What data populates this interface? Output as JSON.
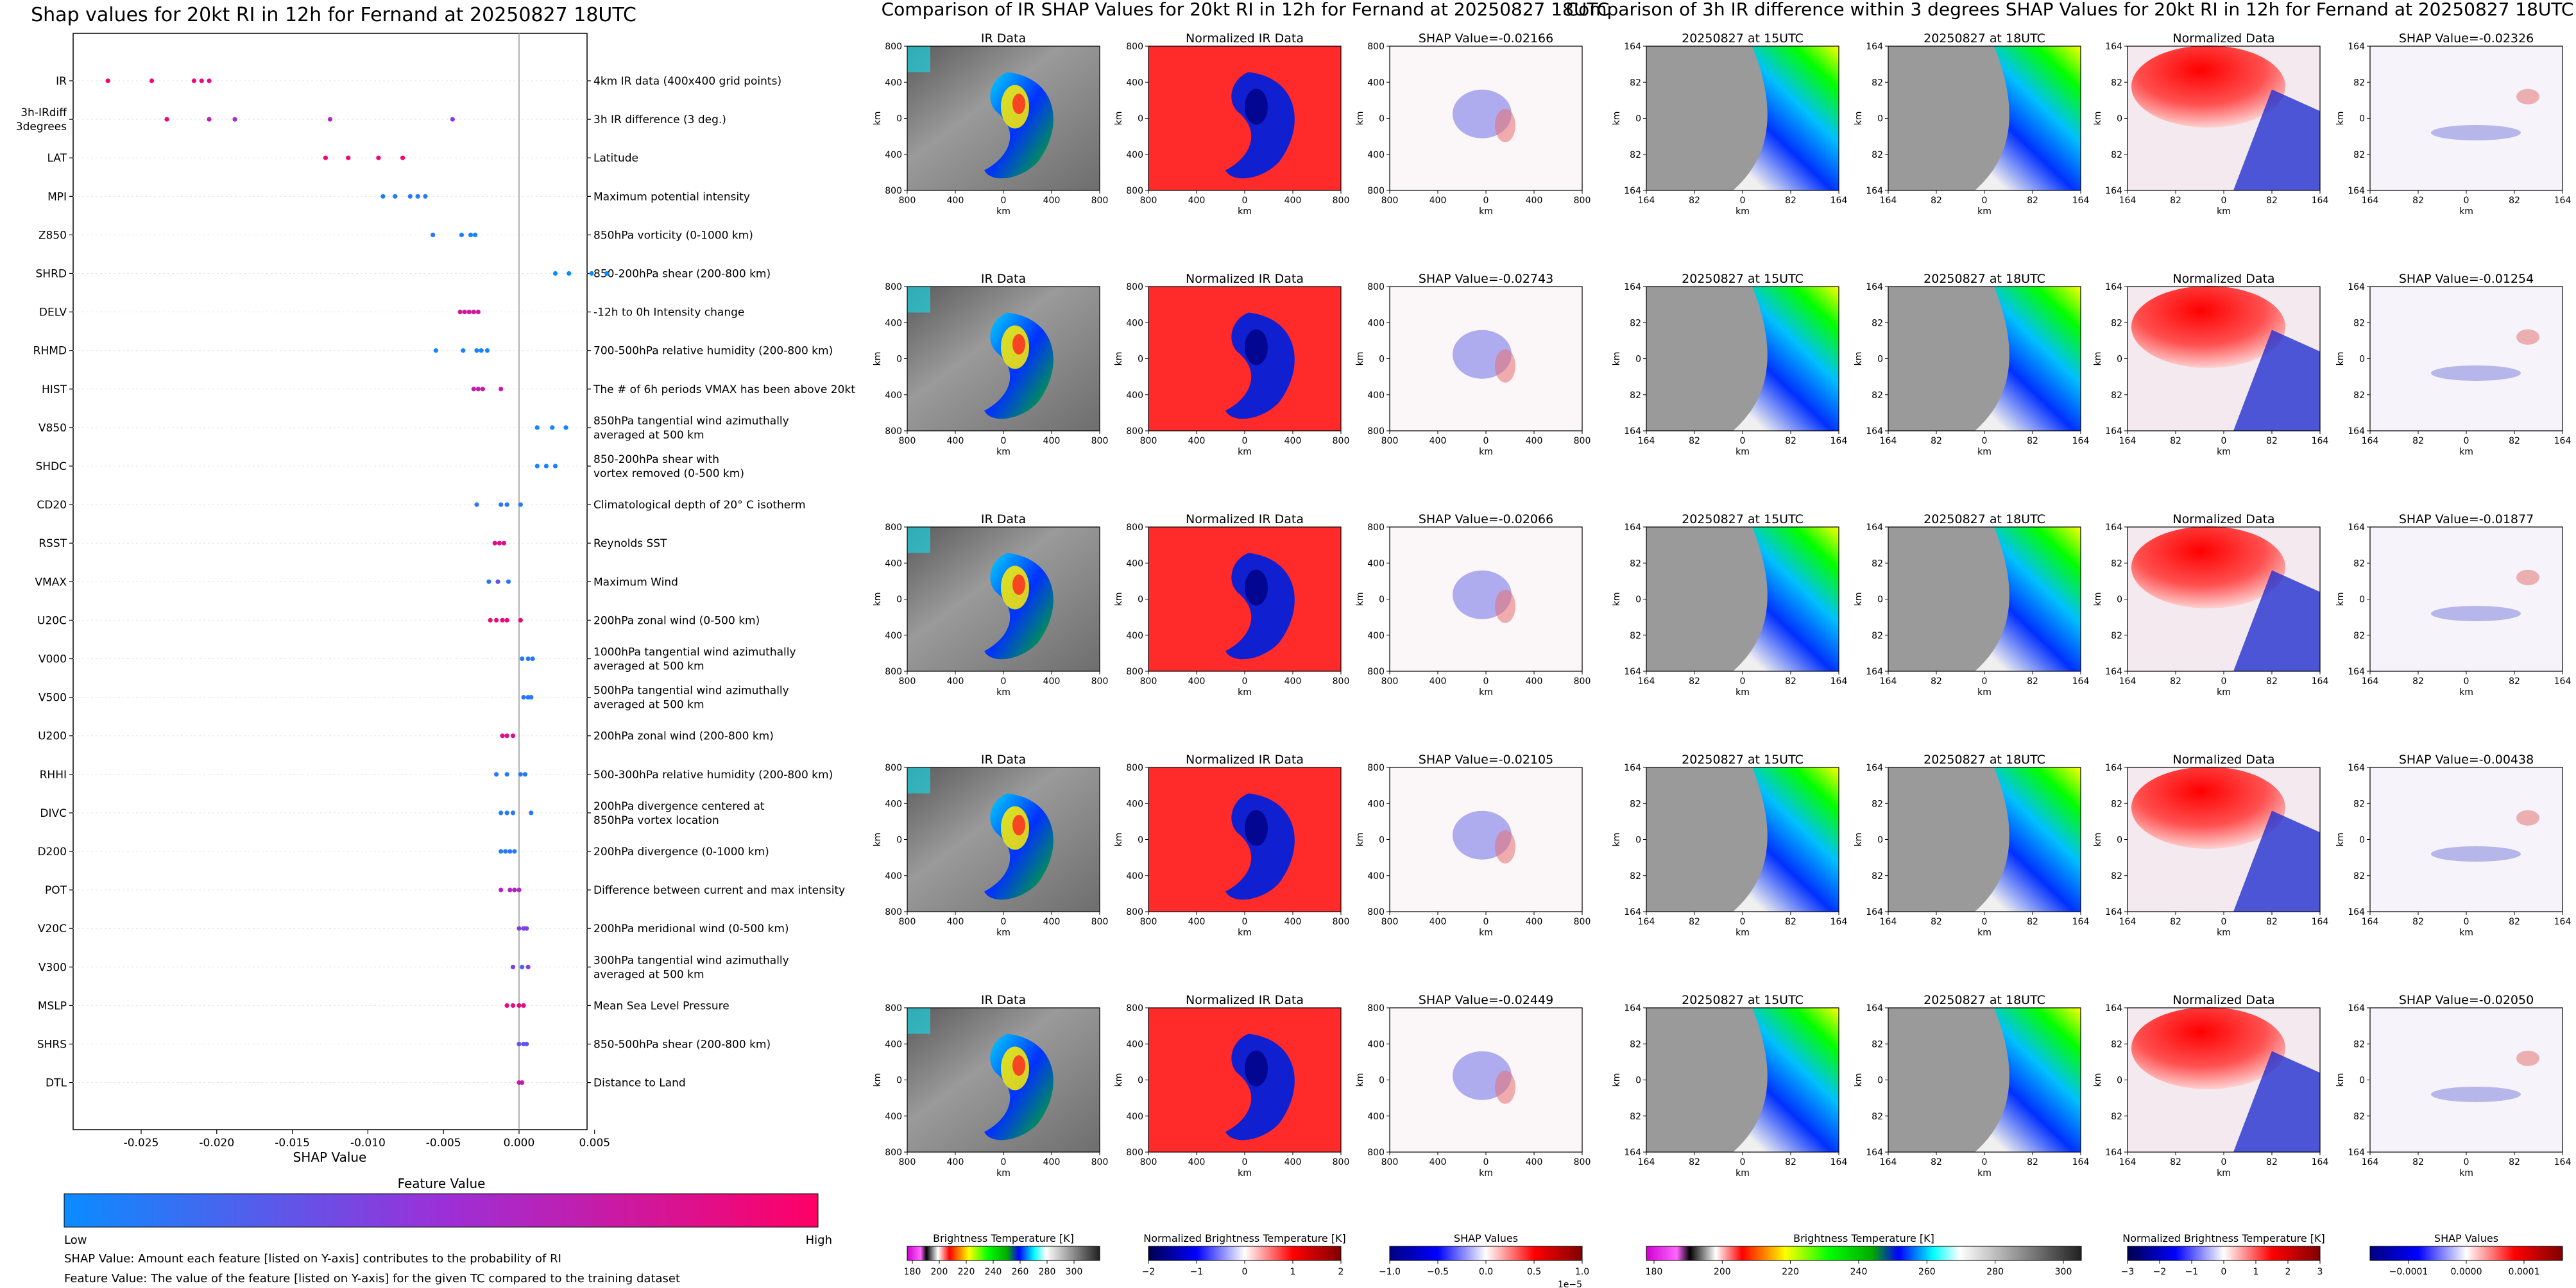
{
  "summary_plot": {
    "title": "Shap values for 20kt RI in 12h for Fernand at 20250827 18UTC",
    "xlabel": "SHAP Value",
    "xticks": [
      "-0.025",
      "-0.020",
      "-0.015",
      "-0.010",
      "-0.005",
      "0.000",
      "0.005"
    ],
    "colorbar": {
      "title": "Feature Value",
      "low": "Low",
      "high": "High"
    },
    "footnote1": "SHAP Value: Amount each feature [listed on Y-axis] contributes to the probability of RI",
    "footnote2": "Feature Value: The value of the feature [listed on Y-axis] for the given TC compared to the training dataset"
  },
  "ir_section": {
    "title": "Comparison of IR SHAP Values for 20kt RI in 12h for Fernand at 20250827 18UTC",
    "col_titles": [
      "IR Data",
      "Normalized IR Data"
    ],
    "shap_titles": [
      "SHAP Value=-0.02166",
      "SHAP Value=-0.02743",
      "SHAP Value=-0.02066",
      "SHAP Value=-0.02105",
      "SHAP Value=-0.02449"
    ],
    "xticks": [
      "800",
      "400",
      "0",
      "400",
      "800"
    ],
    "yticks": [
      "800",
      "400",
      "0",
      "400",
      "800"
    ],
    "axis_label": "km",
    "colorbars": [
      {
        "label": "Brightness Temperature [K]",
        "ticks": [
          "180",
          "200",
          "220",
          "240",
          "260",
          "280",
          "300"
        ],
        "offset": ""
      },
      {
        "label": "Normalized Brightness Temperature [K]",
        "ticks": [
          "−2",
          "−1",
          "0",
          "1",
          "2"
        ],
        "offset": ""
      },
      {
        "label": "SHAP Values",
        "ticks": [
          "−1.0",
          "−0.5",
          "0.0",
          "0.5",
          "1.0"
        ],
        "offset": "1e−5"
      }
    ]
  },
  "diff_section": {
    "title": "Comparison of 3h IR difference within 3 degrees SHAP Values for 20kt RI in 12h for Fernand at 20250827 18UTC",
    "col_titles": [
      "20250827 at 15UTC",
      "20250827 at 18UTC",
      "Normalized Data"
    ],
    "shap_titles": [
      "SHAP Value=-0.02326",
      "SHAP Value=-0.01254",
      "SHAP Value=-0.01877",
      "SHAP Value=-0.00438",
      "SHAP Value=-0.02050"
    ],
    "xticks": [
      "164",
      "82",
      "0",
      "82",
      "164"
    ],
    "yticks": [
      "164",
      "82",
      "0",
      "82",
      "164"
    ],
    "axis_label": "km",
    "colorbars": [
      {
        "label": "Brightness Temperature [K]",
        "ticks": [
          "180",
          "200",
          "220",
          "240",
          "260",
          "280",
          "300"
        ]
      },
      {
        "label": "Normalized Brightness Temperature [K]",
        "ticks": [
          "−3",
          "−2",
          "−1",
          "0",
          "1",
          "2",
          "3"
        ]
      },
      {
        "label": "SHAP Values",
        "ticks": [
          "−0.0001",
          "0.0000",
          "0.0001"
        ]
      }
    ]
  },
  "chart_data": {
    "type": "scatter",
    "title": "Shap values for 20kt RI in 12h for Fernand at 20250827 18UTC",
    "xlabel": "SHAP Value",
    "ylabel": "",
    "xlim": [
      -0.0295,
      0.0045
    ],
    "colorscale": {
      "low": "#0a8cff",
      "mid": "#9b30d8",
      "high": "#ff0066"
    },
    "features": [
      {
        "name": "IR",
        "desc": "4km IR data (400x400 grid points)",
        "points": [
          [
            -0.0272,
            1.0
          ],
          [
            -0.0243,
            0.95
          ],
          [
            -0.0215,
            0.9
          ],
          [
            -0.021,
            0.9
          ],
          [
            -0.0205,
            0.88
          ]
        ]
      },
      {
        "name": "3h-IRdiff\n3degrees",
        "desc": "3h IR difference (3 deg.)",
        "points": [
          [
            -0.0233,
            0.92
          ],
          [
            -0.0205,
            0.65
          ],
          [
            -0.0188,
            0.55
          ],
          [
            -0.0125,
            0.6
          ],
          [
            -0.0044,
            0.45
          ]
        ]
      },
      {
        "name": "LAT",
        "desc": "Latitude",
        "points": [
          [
            -0.0128,
            0.95
          ],
          [
            -0.0113,
            0.95
          ],
          [
            -0.0093,
            0.95
          ],
          [
            -0.0077,
            0.95
          ]
        ]
      },
      {
        "name": "MPI",
        "desc": "Maximum potential intensity",
        "points": [
          [
            -0.009,
            0.1
          ],
          [
            -0.0082,
            0.1
          ],
          [
            -0.0072,
            0.1
          ],
          [
            -0.0067,
            0.1
          ],
          [
            -0.0062,
            0.1
          ]
        ]
      },
      {
        "name": "Z850",
        "desc": "850hPa vorticity (0-1000 km)",
        "points": [
          [
            -0.0057,
            0.1
          ],
          [
            -0.0038,
            0.05
          ],
          [
            -0.0032,
            0.05
          ],
          [
            -0.0029,
            0.05
          ]
        ]
      },
      {
        "name": "SHRD",
        "desc": "850-200hPa shear (200-800 km)",
        "points": [
          [
            0.0024,
            0.0
          ],
          [
            0.0033,
            0.0
          ],
          [
            0.0048,
            0.0
          ],
          [
            0.0058,
            0.0
          ]
        ]
      },
      {
        "name": "DELV",
        "desc": "-12h to 0h Intensity change",
        "points": [
          [
            -0.0039,
            0.75
          ],
          [
            -0.0036,
            0.75
          ],
          [
            -0.0033,
            0.75
          ],
          [
            -0.003,
            0.75
          ],
          [
            -0.0027,
            0.75
          ]
        ]
      },
      {
        "name": "RHMD",
        "desc": "700-500hPa relative humidity (200-800 km)",
        "points": [
          [
            -0.0055,
            0.05
          ],
          [
            -0.0037,
            0.05
          ],
          [
            -0.0028,
            0.05
          ],
          [
            -0.0025,
            0.05
          ],
          [
            -0.0021,
            0.05
          ]
        ]
      },
      {
        "name": "HIST",
        "desc": "The # of 6h periods VMAX has been above 20kt",
        "points": [
          [
            -0.003,
            0.7
          ],
          [
            -0.0027,
            0.7
          ],
          [
            -0.0024,
            0.7
          ],
          [
            -0.0012,
            0.7
          ]
        ]
      },
      {
        "name": "V850",
        "desc": "850hPa tangential wind azimuthally\naveraged at 500 km",
        "points": [
          [
            0.0012,
            0.05
          ],
          [
            0.0022,
            0.05
          ],
          [
            0.0031,
            0.05
          ]
        ]
      },
      {
        "name": "SHDC",
        "desc": "850-200hPa shear with\nvortex removed (0-500 km)",
        "points": [
          [
            0.0012,
            0.05
          ],
          [
            0.0018,
            0.05
          ],
          [
            0.0024,
            0.05
          ]
        ]
      },
      {
        "name": "CD20",
        "desc": "Climatological depth of 20° C isotherm",
        "points": [
          [
            -0.0028,
            0.1
          ],
          [
            -0.0012,
            0.1
          ],
          [
            -0.0008,
            0.1
          ],
          [
            0.0001,
            0.1
          ]
        ]
      },
      {
        "name": "RSST",
        "desc": "Reynolds SST",
        "points": [
          [
            -0.0016,
            0.85
          ],
          [
            -0.0013,
            0.85
          ],
          [
            -0.001,
            0.85
          ]
        ]
      },
      {
        "name": "VMAX",
        "desc": "Maximum Wind",
        "points": [
          [
            -0.002,
            0.1
          ],
          [
            -0.0014,
            0.3
          ],
          [
            -0.0007,
            0.1
          ]
        ]
      },
      {
        "name": "U20C",
        "desc": "200hPa zonal wind (0-500 km)",
        "points": [
          [
            -0.0019,
            0.9
          ],
          [
            -0.0015,
            0.9
          ],
          [
            -0.0011,
            0.9
          ],
          [
            -0.0008,
            0.9
          ],
          [
            0.0001,
            0.9
          ]
        ]
      },
      {
        "name": "V000",
        "desc": "1000hPa tangential wind azimuthally\naveraged at 500 km",
        "points": [
          [
            0.0002,
            0.1
          ],
          [
            0.0006,
            0.1
          ],
          [
            0.0009,
            0.1
          ]
        ]
      },
      {
        "name": "V500",
        "desc": "500hPa tangential wind azimuthally\naveraged at 500 km",
        "points": [
          [
            0.0003,
            0.1
          ],
          [
            0.0006,
            0.1
          ],
          [
            0.0008,
            0.1
          ]
        ]
      },
      {
        "name": "U200",
        "desc": "200hPa zonal wind (200-800 km)",
        "points": [
          [
            -0.0011,
            0.85
          ],
          [
            -0.0008,
            0.85
          ],
          [
            -0.0004,
            0.85
          ]
        ]
      },
      {
        "name": "RHHI",
        "desc": "500-300hPa relative humidity (200-800 km)",
        "points": [
          [
            -0.0015,
            0.1
          ],
          [
            -0.0008,
            0.1
          ],
          [
            0.0001,
            0.1
          ],
          [
            0.0004,
            0.1
          ]
        ]
      },
      {
        "name": "DIVC",
        "desc": "200hPa divergence centered at\n850hPa vortex location",
        "points": [
          [
            -0.0012,
            0.1
          ],
          [
            -0.0008,
            0.1
          ],
          [
            -0.0004,
            0.1
          ],
          [
            0.0008,
            0.1
          ]
        ]
      },
      {
        "name": "D200",
        "desc": "200hPa divergence (0-1000 km)",
        "points": [
          [
            -0.0012,
            0.1
          ],
          [
            -0.0009,
            0.1
          ],
          [
            -0.0006,
            0.1
          ],
          [
            -0.0003,
            0.1
          ]
        ]
      },
      {
        "name": "POT",
        "desc": "Difference between current and max intensity",
        "points": [
          [
            -0.0012,
            0.6
          ],
          [
            -0.0006,
            0.6
          ],
          [
            -0.0003,
            0.6
          ],
          [
            0.0,
            0.6
          ]
        ]
      },
      {
        "name": "V20C",
        "desc": "200hPa meridional wind (0-500 km)",
        "points": [
          [
            0.0,
            0.4
          ],
          [
            0.0003,
            0.4
          ],
          [
            0.0005,
            0.4
          ]
        ]
      },
      {
        "name": "V300",
        "desc": "300hPa tangential wind azimuthally\naveraged at 500 km",
        "points": [
          [
            -0.0004,
            0.4
          ],
          [
            0.0002,
            0.2
          ],
          [
            0.0006,
            0.4
          ]
        ]
      },
      {
        "name": "MSLP",
        "desc": "Mean Sea Level Pressure",
        "points": [
          [
            -0.0008,
            0.9
          ],
          [
            -0.0004,
            0.9
          ],
          [
            0.0,
            0.9
          ],
          [
            0.0003,
            0.9
          ]
        ]
      },
      {
        "name": "SHRS",
        "desc": "850-500hPa shear (200-800 km)",
        "points": [
          [
            0.0,
            0.3
          ],
          [
            0.0003,
            0.3
          ],
          [
            0.0005,
            0.3
          ]
        ]
      },
      {
        "name": "DTL",
        "desc": "Distance to Land",
        "points": [
          [
            0.0,
            0.7
          ],
          [
            0.0002,
            0.7
          ]
        ]
      }
    ]
  }
}
